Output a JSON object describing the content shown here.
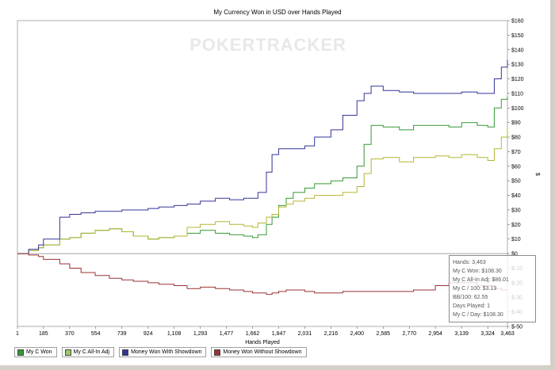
{
  "chart_data": {
    "type": "line",
    "title": "My Currency Won in USD over Hands Played",
    "watermark": "POKERTRACKER",
    "xlabel": "Hands Played",
    "ylabel": "$",
    "xlim": [
      1,
      3463
    ],
    "ylim": [
      -50,
      160
    ],
    "x_ticks": [
      "1",
      "185",
      "370",
      "554",
      "739",
      "924",
      "1,108",
      "1,293",
      "1,477",
      "1,662",
      "1,847",
      "2,031",
      "2,216",
      "2,400",
      "2,585",
      "2,770",
      "2,954",
      "3,139",
      "3,324",
      "3,463"
    ],
    "y_ticks": [
      "$160",
      "$150",
      "$140",
      "$130",
      "$120",
      "$110",
      "$100",
      "$90",
      "$80",
      "$70",
      "$60",
      "$50",
      "$40",
      "$30",
      "$20",
      "$10",
      "$0",
      "$-10",
      "$-20",
      "$-30",
      "$-40",
      "$-50"
    ],
    "series": [
      {
        "name": "My C Won",
        "color": "#339933",
        "x": [
          1,
          80,
          150,
          185,
          300,
          370,
          450,
          550,
          650,
          739,
          820,
          924,
          1000,
          1108,
          1200,
          1293,
          1400,
          1500,
          1600,
          1662,
          1700,
          1760,
          1800,
          1847,
          1900,
          1950,
          2031,
          2100,
          2216,
          2300,
          2400,
          2450,
          2500,
          2585,
          2700,
          2800,
          2954,
          3050,
          3139,
          3250,
          3324,
          3370,
          3420,
          3463
        ],
        "y": [
          0,
          2,
          4,
          6,
          10,
          11,
          14,
          16,
          17,
          15,
          12,
          10,
          11,
          12,
          14,
          16,
          14,
          13,
          12,
          11,
          13,
          20,
          25,
          33,
          38,
          42,
          45,
          48,
          50,
          52,
          60,
          75,
          88,
          87,
          85,
          88,
          88,
          87,
          90,
          88,
          87,
          100,
          106,
          108
        ]
      },
      {
        "name": "My C All-In Adj",
        "color": "#b5b533",
        "x": [
          1,
          80,
          150,
          185,
          300,
          370,
          450,
          550,
          650,
          739,
          820,
          924,
          1000,
          1108,
          1200,
          1293,
          1400,
          1500,
          1600,
          1662,
          1700,
          1760,
          1800,
          1847,
          1900,
          1950,
          2031,
          2100,
          2216,
          2300,
          2400,
          2450,
          2500,
          2585,
          2700,
          2800,
          2954,
          3050,
          3139,
          3250,
          3324,
          3370,
          3420,
          3463
        ],
        "y": [
          0,
          2,
          4,
          6,
          10,
          11,
          14,
          16,
          17,
          15,
          12,
          10,
          11,
          12,
          18,
          20,
          22,
          20,
          19,
          18,
          21,
          25,
          27,
          32,
          34,
          36,
          38,
          40,
          40,
          42,
          46,
          55,
          65,
          66,
          63,
          66,
          67,
          66,
          68,
          66,
          64,
          72,
          80,
          86
        ]
      },
      {
        "name": "Money Won With Showdown",
        "color": "#333399",
        "x": [
          1,
          80,
          150,
          185,
          300,
          370,
          450,
          550,
          650,
          739,
          820,
          924,
          1000,
          1108,
          1200,
          1293,
          1400,
          1500,
          1600,
          1662,
          1700,
          1760,
          1800,
          1847,
          1900,
          1950,
          2031,
          2100,
          2216,
          2300,
          2400,
          2450,
          2500,
          2585,
          2700,
          2800,
          2954,
          3050,
          3139,
          3250,
          3324,
          3370,
          3420,
          3463
        ],
        "y": [
          0,
          3,
          6,
          10,
          25,
          27,
          28,
          29,
          29,
          30,
          30,
          31,
          32,
          33,
          34,
          36,
          38,
          37,
          38,
          38,
          42,
          56,
          68,
          72,
          72,
          72,
          74,
          80,
          85,
          95,
          105,
          110,
          115,
          112,
          111,
          110,
          110,
          110,
          111,
          110,
          110,
          120,
          128,
          133
        ]
      },
      {
        "name": "Money Won Without Showdown",
        "color": "#993333",
        "x": [
          1,
          80,
          150,
          185,
          300,
          370,
          450,
          550,
          650,
          739,
          820,
          924,
          1000,
          1108,
          1200,
          1293,
          1400,
          1500,
          1600,
          1662,
          1700,
          1760,
          1800,
          1847,
          1900,
          1950,
          2031,
          2100,
          2216,
          2300,
          2400,
          2450,
          2500,
          2585,
          2700,
          2800,
          2954,
          3050,
          3139,
          3250,
          3324,
          3370,
          3420,
          3463
        ],
        "y": [
          0,
          -1,
          -2,
          -4,
          -7,
          -10,
          -13,
          -15,
          -17,
          -18,
          -19,
          -20,
          -21,
          -22,
          -24,
          -23,
          -24,
          -25,
          -26,
          -27,
          -27,
          -28,
          -27,
          -26,
          -25,
          -25,
          -26,
          -27,
          -27,
          -26,
          -26,
          -26,
          -26,
          -26,
          -26,
          -25,
          -22,
          -20,
          -20,
          -22,
          -22,
          -24,
          -25,
          -25
        ]
      }
    ],
    "grid": false,
    "legend_position": "bottom-left"
  },
  "legend": [
    {
      "label": "My C Won",
      "color": "#339933"
    },
    {
      "label": "My C All-In Adj",
      "color": "#99cc66"
    },
    {
      "label": "Money Won With Showdown",
      "color": "#333399"
    },
    {
      "label": "Money Won Without Showdown",
      "color": "#993333"
    }
  ],
  "tooltip": {
    "hands": "Hands: 3,463",
    "won": "My C Won: $108.30",
    "allin": "My C All-In Adj: $86.01",
    "per100": "My C / 100: $3.13",
    "bb100": "BB/100: 62.55",
    "days": "Days Played: 1",
    "perday": "My C / Day: $108.30"
  }
}
